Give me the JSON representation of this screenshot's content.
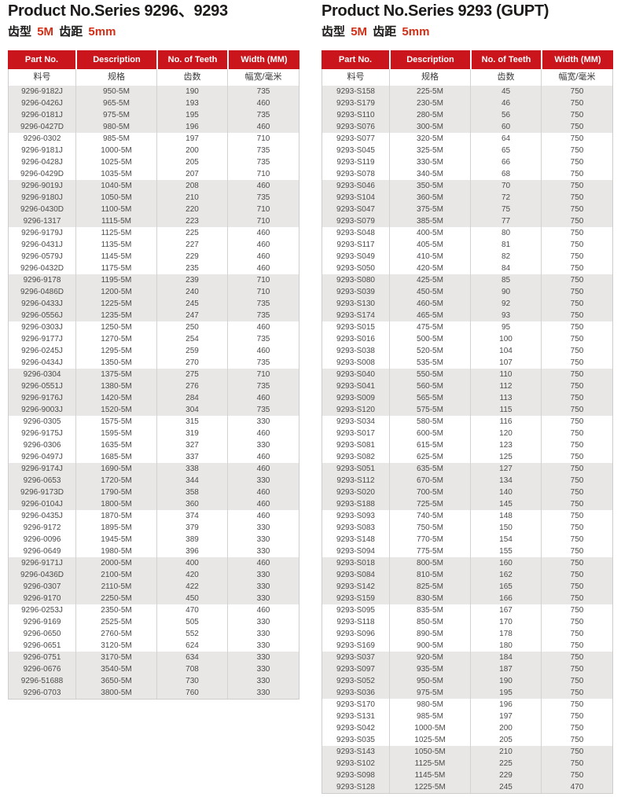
{
  "colors": {
    "header_red": "#c9151b",
    "accent_red": "#d03018",
    "band_gray": "#e8e7e5",
    "text_dark": "#1c1a18",
    "text_data": "#4d4b49"
  },
  "tables": [
    {
      "title": "Product No.Series 9296、9293",
      "subtitle_parts": [
        "齿型",
        "5M",
        "齿距",
        "5mm"
      ],
      "headers_en": [
        "Part No.",
        "Description",
        "No. of Teeth",
        "Width (MM)"
      ],
      "headers_cn": [
        "料号",
        "规格",
        "齿数",
        "幅宽/毫米"
      ],
      "rows": [
        [
          "9296-9182J",
          "950-5M",
          "190",
          "735"
        ],
        [
          "9296-0426J",
          "965-5M",
          "193",
          "460"
        ],
        [
          "9296-0181J",
          "975-5M",
          "195",
          "735"
        ],
        [
          "9296-0427D",
          "980-5M",
          "196",
          "460"
        ],
        [
          "9296-0302",
          "985-5M",
          "197",
          "710"
        ],
        [
          "9296-9181J",
          "1000-5M",
          "200",
          "735"
        ],
        [
          "9296-0428J",
          "1025-5M",
          "205",
          "735"
        ],
        [
          "9296-0429D",
          "1035-5M",
          "207",
          "710"
        ],
        [
          "9296-9019J",
          "1040-5M",
          "208",
          "460"
        ],
        [
          "9296-9180J",
          "1050-5M",
          "210",
          "735"
        ],
        [
          "9296-0430D",
          "1100-5M",
          "220",
          "710"
        ],
        [
          "9296-1317",
          "1115-5M",
          "223",
          "710"
        ],
        [
          "9296-9179J",
          "1125-5M",
          "225",
          "460"
        ],
        [
          "9296-0431J",
          "1135-5M",
          "227",
          "460"
        ],
        [
          "9296-0579J",
          "1145-5M",
          "229",
          "460"
        ],
        [
          "9296-0432D",
          "1175-5M",
          "235",
          "460"
        ],
        [
          "9296-9178",
          "1195-5M",
          "239",
          "710"
        ],
        [
          "9296-0486D",
          "1200-5M",
          "240",
          "710"
        ],
        [
          "9296-0433J",
          "1225-5M",
          "245",
          "735"
        ],
        [
          "9296-0556J",
          "1235-5M",
          "247",
          "735"
        ],
        [
          "9296-0303J",
          "1250-5M",
          "250",
          "460"
        ],
        [
          "9296-9177J",
          "1270-5M",
          "254",
          "735"
        ],
        [
          "9296-0245J",
          "1295-5M",
          "259",
          "460"
        ],
        [
          "9296-0434J",
          "1350-5M",
          "270",
          "735"
        ],
        [
          "9296-0304",
          "1375-5M",
          "275",
          "710"
        ],
        [
          "9296-0551J",
          "1380-5M",
          "276",
          "735"
        ],
        [
          "9296-9176J",
          "1420-5M",
          "284",
          "460"
        ],
        [
          "9296-9003J",
          "1520-5M",
          "304",
          "735"
        ],
        [
          "9296-0305",
          "1575-5M",
          "315",
          "330"
        ],
        [
          "9296-9175J",
          "1595-5M",
          "319",
          "460"
        ],
        [
          "9296-0306",
          "1635-5M",
          "327",
          "330"
        ],
        [
          "9296-0497J",
          "1685-5M",
          "337",
          "460"
        ],
        [
          "9296-9174J",
          "1690-5M",
          "338",
          "460"
        ],
        [
          "9296-0653",
          "1720-5M",
          "344",
          "330"
        ],
        [
          "9296-9173D",
          "1790-5M",
          "358",
          "460"
        ],
        [
          "9296-0104J",
          "1800-5M",
          "360",
          "460"
        ],
        [
          "9296-0435J",
          "1870-5M",
          "374",
          "460"
        ],
        [
          "9296-9172",
          "1895-5M",
          "379",
          "330"
        ],
        [
          "9296-0096",
          "1945-5M",
          "389",
          "330"
        ],
        [
          "9296-0649",
          "1980-5M",
          "396",
          "330"
        ],
        [
          "9296-9171J",
          "2000-5M",
          "400",
          "460"
        ],
        [
          "9296-0436D",
          "2100-5M",
          "420",
          "330"
        ],
        [
          "9296-0307",
          "2110-5M",
          "422",
          "330"
        ],
        [
          "9296-9170",
          "2250-5M",
          "450",
          "330"
        ],
        [
          "9296-0253J",
          "2350-5M",
          "470",
          "460"
        ],
        [
          "9296-9169",
          "2525-5M",
          "505",
          "330"
        ],
        [
          "9296-0650",
          "2760-5M",
          "552",
          "330"
        ],
        [
          "9296-0651",
          "3120-5M",
          "624",
          "330"
        ],
        [
          "9296-0751",
          "3170-5M",
          "634",
          "330"
        ],
        [
          "9296-0676",
          "3540-5M",
          "708",
          "330"
        ],
        [
          "9296-51688",
          "3650-5M",
          "730",
          "330"
        ],
        [
          "9296-0703",
          "3800-5M",
          "760",
          "330"
        ]
      ]
    },
    {
      "title": "Product No.Series 9293 (GUPT)",
      "subtitle_parts": [
        "齿型",
        "5M",
        "齿距",
        "5mm"
      ],
      "headers_en": [
        "Part No.",
        "Description",
        "No. of Teeth",
        "Width (MM)"
      ],
      "headers_cn": [
        "料号",
        "规格",
        "齿数",
        "幅宽/毫米"
      ],
      "rows": [
        [
          "9293-S158",
          "225-5M",
          "45",
          "750"
        ],
        [
          "9293-S179",
          "230-5M",
          "46",
          "750"
        ],
        [
          "9293-S110",
          "280-5M",
          "56",
          "750"
        ],
        [
          "9293-S076",
          "300-5M",
          "60",
          "750"
        ],
        [
          "9293-S077",
          "320-5M",
          "64",
          "750"
        ],
        [
          "9293-S045",
          "325-5M",
          "65",
          "750"
        ],
        [
          "9293-S119",
          "330-5M",
          "66",
          "750"
        ],
        [
          "9293-S078",
          "340-5M",
          "68",
          "750"
        ],
        [
          "9293-S046",
          "350-5M",
          "70",
          "750"
        ],
        [
          "9293-S104",
          "360-5M",
          "72",
          "750"
        ],
        [
          "9293-S047",
          "375-5M",
          "75",
          "750"
        ],
        [
          "9293-S079",
          "385-5M",
          "77",
          "750"
        ],
        [
          "9293-S048",
          "400-5M",
          "80",
          "750"
        ],
        [
          "9293-S117",
          "405-5M",
          "81",
          "750"
        ],
        [
          "9293-S049",
          "410-5M",
          "82",
          "750"
        ],
        [
          "9293-S050",
          "420-5M",
          "84",
          "750"
        ],
        [
          "9293-S080",
          "425-5M",
          "85",
          "750"
        ],
        [
          "9293-S039",
          "450-5M",
          "90",
          "750"
        ],
        [
          "9293-S130",
          "460-5M",
          "92",
          "750"
        ],
        [
          "9293-S174",
          "465-5M",
          "93",
          "750"
        ],
        [
          "9293-S015",
          "475-5M",
          "95",
          "750"
        ],
        [
          "9293-S016",
          "500-5M",
          "100",
          "750"
        ],
        [
          "9293-S038",
          "520-5M",
          "104",
          "750"
        ],
        [
          "9293-S008",
          "535-5M",
          "107",
          "750"
        ],
        [
          "9293-S040",
          "550-5M",
          "110",
          "750"
        ],
        [
          "9293-S041",
          "560-5M",
          "112",
          "750"
        ],
        [
          "9293-S009",
          "565-5M",
          "113",
          "750"
        ],
        [
          "9293-S120",
          "575-5M",
          "115",
          "750"
        ],
        [
          "9293-S034",
          "580-5M",
          "116",
          "750"
        ],
        [
          "9293-S017",
          "600-5M",
          "120",
          "750"
        ],
        [
          "9293-S081",
          "615-5M",
          "123",
          "750"
        ],
        [
          "9293-S082",
          "625-5M",
          "125",
          "750"
        ],
        [
          "9293-S051",
          "635-5M",
          "127",
          "750"
        ],
        [
          "9293-S112",
          "670-5M",
          "134",
          "750"
        ],
        [
          "9293-S020",
          "700-5M",
          "140",
          "750"
        ],
        [
          "9293-S188",
          "725-5M",
          "145",
          "750"
        ],
        [
          "9293-S093",
          "740-5M",
          "148",
          "750"
        ],
        [
          "9293-S083",
          "750-5M",
          "150",
          "750"
        ],
        [
          "9293-S148",
          "770-5M",
          "154",
          "750"
        ],
        [
          "9293-S094",
          "775-5M",
          "155",
          "750"
        ],
        [
          "9293-S018",
          "800-5M",
          "160",
          "750"
        ],
        [
          "9293-S084",
          "810-5M",
          "162",
          "750"
        ],
        [
          "9293-S142",
          "825-5M",
          "165",
          "750"
        ],
        [
          "9293-S159",
          "830-5M",
          "166",
          "750"
        ],
        [
          "9293-S095",
          "835-5M",
          "167",
          "750"
        ],
        [
          "9293-S118",
          "850-5M",
          "170",
          "750"
        ],
        [
          "9293-S096",
          "890-5M",
          "178",
          "750"
        ],
        [
          "9293-S169",
          "900-5M",
          "180",
          "750"
        ],
        [
          "9293-S037",
          "920-5M",
          "184",
          "750"
        ],
        [
          "9293-S097",
          "935-5M",
          "187",
          "750"
        ],
        [
          "9293-S052",
          "950-5M",
          "190",
          "750"
        ],
        [
          "9293-S036",
          "975-5M",
          "195",
          "750"
        ],
        [
          "9293-S170",
          "980-5M",
          "196",
          "750"
        ],
        [
          "9293-S131",
          "985-5M",
          "197",
          "750"
        ],
        [
          "9293-S042",
          "1000-5M",
          "200",
          "750"
        ],
        [
          "9293-S035",
          "1025-5M",
          "205",
          "750"
        ],
        [
          "9293-S143",
          "1050-5M",
          "210",
          "750"
        ],
        [
          "9293-S102",
          "1125-5M",
          "225",
          "750"
        ],
        [
          "9293-S098",
          "1145-5M",
          "229",
          "750"
        ],
        [
          "9293-S128",
          "1225-5M",
          "245",
          "470"
        ]
      ]
    }
  ]
}
